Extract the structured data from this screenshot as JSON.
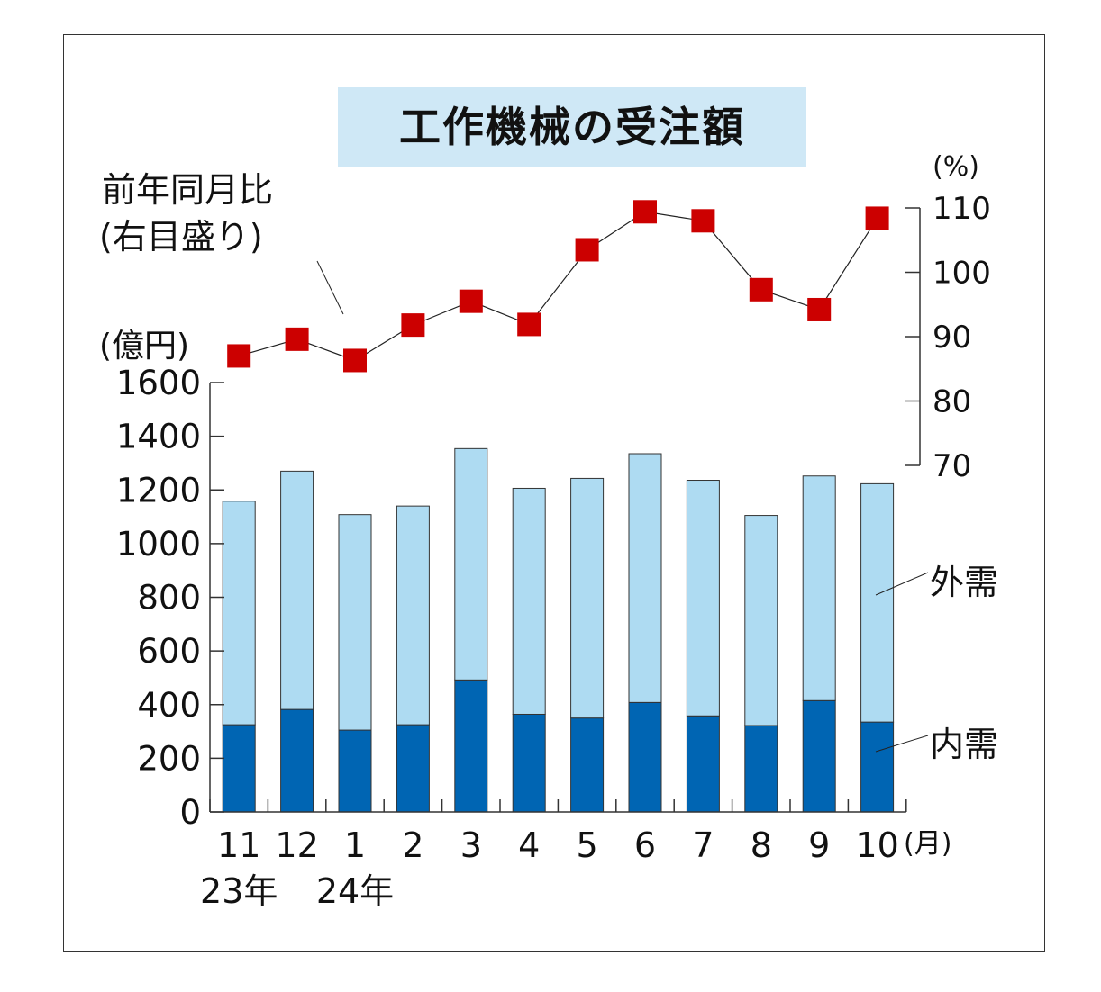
{
  "chart_data": {
    "type": "bar",
    "title": "工作機械の受注額",
    "categories": [
      "11",
      "12",
      "1",
      "2",
      "3",
      "4",
      "5",
      "6",
      "7",
      "8",
      "9",
      "10"
    ],
    "x_unit": "(月)",
    "year_labels": [
      {
        "category": "11",
        "label": "23年"
      },
      {
        "category": "1",
        "label": "24年"
      }
    ],
    "stacked": true,
    "series": [
      {
        "name": "内需",
        "values": [
          325,
          382,
          305,
          325,
          492,
          364,
          350,
          408,
          358,
          322,
          415,
          335
        ],
        "color": "#0065b3"
      },
      {
        "name": "外需",
        "values": [
          833,
          888,
          803,
          815,
          862,
          842,
          893,
          927,
          878,
          783,
          837,
          888
        ],
        "color": "#aedbf2"
      }
    ],
    "bar_totals": [
      1158,
      1270,
      1108,
      1140,
      1354,
      1206,
      1243,
      1335,
      1236,
      1105,
      1252,
      1223
    ],
    "y_left": {
      "label": "(億円)",
      "min": 0,
      "max": 1600,
      "ticks": [
        0,
        200,
        400,
        600,
        800,
        1000,
        1200,
        1400,
        1600
      ]
    },
    "line_series": {
      "name_line1": "前年同月比",
      "name_line2": "(右目盛り)",
      "axis": "right",
      "values": [
        87.0,
        89.6,
        86.3,
        91.8,
        95.5,
        91.9,
        103.5,
        109.4,
        108.0,
        97.3,
        94.2,
        108.4
      ],
      "color": "#cc0000"
    },
    "y_right": {
      "label": "(%)",
      "min": 70,
      "max": 110,
      "ticks": [
        70,
        80,
        90,
        100,
        110
      ]
    }
  }
}
